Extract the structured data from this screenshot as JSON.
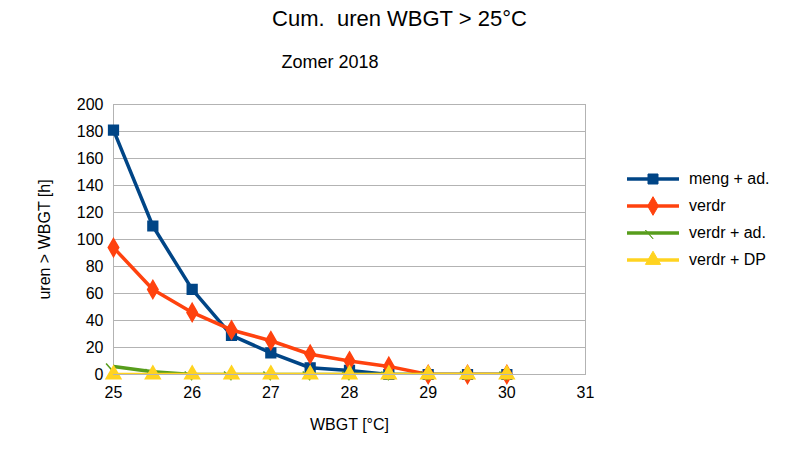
{
  "chart_data": {
    "type": "line",
    "title": "Cum.  uren WBGT > 25°C",
    "subtitle": "Zomer 2018",
    "x_label": "WBGT [°C]",
    "y_label": "uren > WBGT [h]",
    "x": [
      25,
      25.5,
      26,
      26.5,
      27,
      27.5,
      28,
      28.5,
      29,
      29.5,
      30
    ],
    "series": [
      {
        "name": "meng + ad.",
        "color": "#004586",
        "marker": "square",
        "values": [
          181,
          110,
          63,
          29,
          16,
          5,
          3,
          0,
          0,
          0,
          0
        ]
      },
      {
        "name": "verdr",
        "color": "#ff420e",
        "marker": "diamond",
        "values": [
          94,
          63,
          46,
          33,
          25,
          15,
          10,
          6,
          0,
          0,
          0
        ]
      },
      {
        "name": "verdr + ad.",
        "color": "#579d1c",
        "marker": "triangle-down",
        "values": [
          6,
          2,
          0,
          0,
          0,
          0,
          0,
          0,
          0,
          0,
          0
        ]
      },
      {
        "name": "verdr + DP",
        "color": "#ffd320",
        "marker": "triangle",
        "values": [
          0,
          0,
          0,
          0,
          0,
          0,
          0,
          0,
          0,
          0,
          0
        ]
      }
    ],
    "xlim": [
      25,
      31
    ],
    "xticks": [
      25,
      26,
      27,
      28,
      29,
      30,
      31
    ],
    "ylim": [
      0,
      200
    ],
    "yticks": [
      0,
      20,
      40,
      60,
      80,
      100,
      120,
      140,
      160,
      180,
      200
    ],
    "grid": true,
    "legend": "right"
  }
}
